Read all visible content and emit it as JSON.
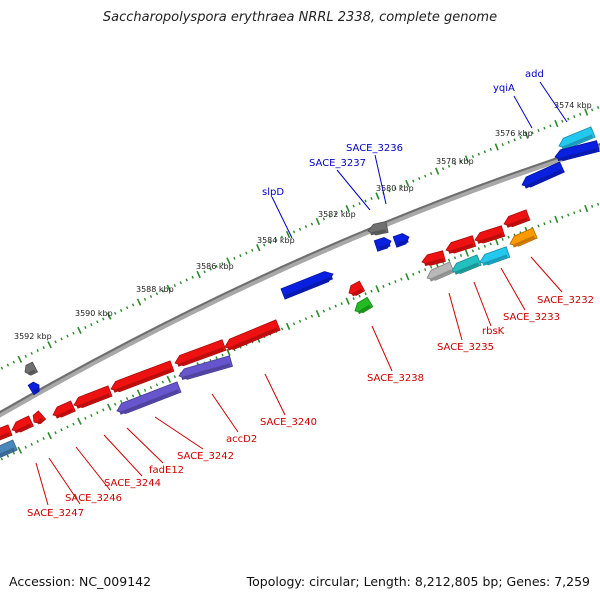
{
  "title": "Saccharopolyspora erythraea NRRL 2338, complete genome",
  "footer": {
    "accession": "Accession: NC_009142",
    "stats": "Topology: circular; Length: 8,212,805 bp; Genes: 7,259"
  },
  "colors": {
    "backbone": "#808080",
    "tick": "#2a8a2a",
    "forward_label": "#0000cc",
    "reverse_label": "#cc0000",
    "red": "#ee1111",
    "blue": "#0a20e0",
    "cyan": "#22c8ee",
    "teal": "#22c0c0",
    "purple": "#6655cc",
    "gray": "#707070",
    "lightgray": "#b8b8b8",
    "green": "#22bb22",
    "orange": "#ff9900",
    "steelblue": "#4a88bb"
  },
  "ruler": {
    "labels": [
      "3574 kbp",
      "3576 kbp",
      "3578 kbp",
      "3580 kbp",
      "3582 kbp",
      "3584 kbp",
      "3586 kbp",
      "3588 kbp",
      "3590 kbp",
      "3592 kbp"
    ]
  },
  "forward_gene_labels": [
    "add",
    "yqiA",
    "SACE_3236",
    "SACE_3237",
    "slpD"
  ],
  "reverse_gene_labels": [
    "SACE_3232",
    "SACE_3233",
    "rbsK",
    "SACE_3235",
    "SACE_3238",
    "SACE_3240",
    "accD2",
    "SACE_3242",
    "fadE12",
    "SACE_3244",
    "SACE_3246",
    "SACE_3247"
  ]
}
